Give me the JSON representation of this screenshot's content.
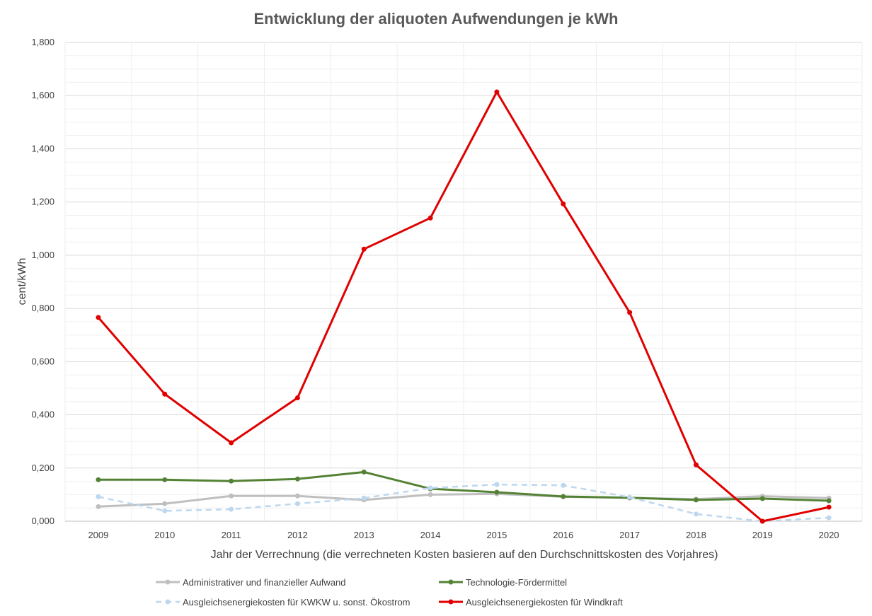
{
  "chart_data": {
    "type": "line",
    "title": "Entwicklung der aliquoten Aufwendungen je kWh",
    "xlabel": "Jahr der Verrechnung (die verrechneten Kosten basieren auf den Durchschnittskosten des Vorjahres)",
    "ylabel": "cent/kWh",
    "ylim": [
      0,
      1.8
    ],
    "y_ticks": [
      "0,000",
      "0,200",
      "0,400",
      "0,600",
      "0,800",
      "1,000",
      "1,200",
      "1,400",
      "1,600",
      "1,800"
    ],
    "grid": true,
    "legend_position": "bottom",
    "categories": [
      "2009",
      "2010",
      "2011",
      "2012",
      "2013",
      "2014",
      "2015",
      "2016",
      "2017",
      "2018",
      "2019",
      "2020"
    ],
    "series": [
      {
        "name": "Administrativer und finanzieller Aufwand",
        "color": "#bfbfbf",
        "dash": false,
        "values": [
          0.055,
          0.066,
          0.095,
          0.095,
          0.08,
          0.1,
          0.103,
          0.092,
          0.088,
          0.083,
          0.094,
          0.087
        ]
      },
      {
        "name": "Technologie-Fördermittel",
        "color": "#548235",
        "dash": false,
        "values": [
          0.156,
          0.156,
          0.151,
          0.159,
          0.185,
          0.122,
          0.109,
          0.093,
          0.088,
          0.08,
          0.085,
          0.077
        ]
      },
      {
        "name": "Ausgleichsenergiekosten für KWKW u. sonst. Ökostrom",
        "color": "#bdd7ee",
        "dash": true,
        "values": [
          0.092,
          0.039,
          0.045,
          0.066,
          0.087,
          0.125,
          0.138,
          0.135,
          0.09,
          0.027,
          0.0,
          0.013
        ]
      },
      {
        "name": "Ausgleichsenergiekosten für Windkraft",
        "color": "#e00000",
        "dash": false,
        "values": [
          0.766,
          0.478,
          0.295,
          0.464,
          1.023,
          1.14,
          1.614,
          1.193,
          0.785,
          0.212,
          0.0,
          0.053
        ]
      }
    ]
  }
}
